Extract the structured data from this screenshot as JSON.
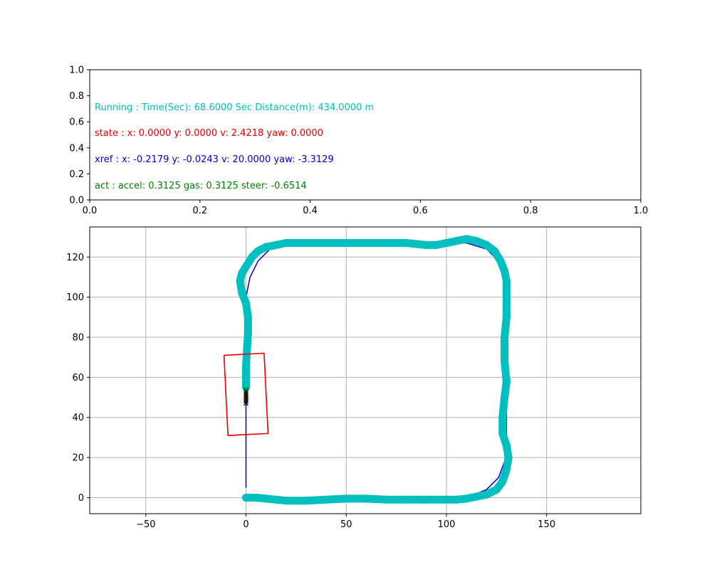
{
  "chart_data": [
    {
      "type": "text",
      "xlim": [
        0,
        1
      ],
      "ylim": [
        0,
        1
      ],
      "xticks": [
        "0.0",
        "0.2",
        "0.4",
        "0.6",
        "0.8",
        "1.0"
      ],
      "yticks": [
        "0.0",
        "0.2",
        "0.4",
        "0.6",
        "0.8",
        "1.0"
      ],
      "texts": [
        {
          "label": "Running : Time(Sec): 68.6000 Sec Distance(m): 434.0000 m",
          "color": "#00bfbf",
          "x": 0.01,
          "y": 0.7
        },
        {
          "label": "state :  x: 0.0000 y: 0.0000 v: 2.4218 yaw: 0.0000",
          "color": "#dd0000",
          "x": 0.01,
          "y": 0.5
        },
        {
          "label": "xref :  x: -0.2179 y: -0.0243 v: 20.0000 yaw: -3.3129",
          "color": "#0000cc",
          "x": 0.01,
          "y": 0.3
        },
        {
          "label": "act :  accel: 0.3125 gas: 0.3125 steer: -0.6514",
          "color": "#008000",
          "x": 0.01,
          "y": 0.1
        }
      ]
    },
    {
      "type": "line",
      "xlim": [
        -78,
        197
      ],
      "ylim": [
        -8,
        135
      ],
      "xticks": [
        -50,
        0,
        50,
        100,
        150
      ],
      "yticks": [
        0,
        20,
        40,
        60,
        80,
        100,
        120
      ],
      "xtick_labels": [
        "−50",
        "0",
        "50",
        "100",
        "150"
      ],
      "ytick_labels": [
        "0",
        "20",
        "40",
        "60",
        "80",
        "100",
        "120"
      ],
      "grid": true,
      "colors": {
        "reference": "#0000cc",
        "trajectory": "#00bfbf",
        "vehicle": "#ee0000",
        "history": "#000000",
        "current": "#008000"
      },
      "series": [
        {
          "points": [
            [
              0,
              5
            ],
            [
              0,
              20
            ],
            [
              0,
              40
            ],
            [
              0,
              55
            ],
            [
              0,
              70
            ],
            [
              0,
              85
            ],
            [
              0,
              100
            ],
            [
              2,
              110
            ],
            [
              6,
              118
            ],
            [
              12,
              124
            ],
            [
              20,
              127
            ],
            [
              40,
              127
            ],
            [
              70,
              127
            ],
            [
              100,
              127
            ],
            [
              110,
              127
            ],
            [
              120,
              124
            ],
            [
              126,
              118
            ],
            [
              129,
              110
            ],
            [
              130,
              100
            ],
            [
              130,
              80
            ],
            [
              130,
              60
            ],
            [
              130,
              40
            ],
            [
              130,
              25
            ],
            [
              129,
              18
            ],
            [
              126,
              10
            ],
            [
              120,
              4
            ],
            [
              110,
              0
            ],
            [
              80,
              0
            ],
            [
              50,
              0
            ],
            [
              20,
              0
            ],
            [
              0,
              0
            ]
          ]
        },
        {
          "points": [
            [
              0,
              0
            ],
            [
              5,
              0
            ],
            [
              10,
              -0.5
            ],
            [
              15,
              -1
            ],
            [
              20,
              -1.5
            ],
            [
              30,
              -1.5
            ],
            [
              40,
              -1
            ],
            [
              50,
              -0.5
            ],
            [
              60,
              -0.5
            ],
            [
              70,
              -1
            ],
            [
              80,
              -1
            ],
            [
              90,
              -1
            ],
            [
              100,
              -1
            ],
            [
              105,
              -1
            ],
            [
              110,
              -0.5
            ],
            [
              115,
              0.5
            ],
            [
              120,
              1.5
            ],
            [
              125,
              4
            ],
            [
              128,
              8
            ],
            [
              130,
              14
            ],
            [
              131,
              20
            ],
            [
              130,
              26
            ],
            [
              128,
              32
            ],
            [
              128,
              40
            ],
            [
              129,
              50
            ],
            [
              130,
              58
            ],
            [
              129,
              68
            ],
            [
              129,
              80
            ],
            [
              130,
              90
            ],
            [
              130,
              100
            ],
            [
              130,
              108
            ],
            [
              129,
              113
            ],
            [
              127,
              118
            ],
            [
              124,
              123
            ],
            [
              120,
              126
            ],
            [
              115,
              128
            ],
            [
              110,
              129
            ],
            [
              105,
              128
            ],
            [
              100,
              127
            ],
            [
              95,
              126
            ],
            [
              90,
              126
            ],
            [
              85,
              126.5
            ],
            [
              80,
              127
            ],
            [
              70,
              127
            ],
            [
              60,
              127
            ],
            [
              50,
              127
            ],
            [
              40,
              127
            ],
            [
              30,
              127
            ],
            [
              20,
              127
            ],
            [
              15,
              126
            ],
            [
              10,
              125
            ],
            [
              6,
              123
            ],
            [
              3,
              120
            ],
            [
              0.5,
              116
            ],
            [
              -2,
              112
            ],
            [
              -3,
              108
            ],
            [
              -2,
              102
            ],
            [
              0,
              97
            ],
            [
              1,
              90
            ],
            [
              1,
              82
            ],
            [
              0.5,
              74
            ],
            [
              0,
              65
            ],
            [
              0,
              58
            ],
            [
              0,
              55
            ]
          ]
        },
        {
          "points": [
            [
              -11,
              71
            ],
            [
              9,
              72
            ],
            [
              11,
              32
            ],
            [
              -9,
              31
            ],
            [
              -11,
              71
            ]
          ]
        },
        {
          "points": [
            [
              0,
              47
            ],
            [
              0,
              48
            ],
            [
              0,
              49
            ],
            [
              0,
              50
            ],
            [
              0,
              51
            ],
            [
              0,
              52
            ],
            [
              0,
              53
            ]
          ]
        },
        {
          "points": [
            [
              0,
              54
            ]
          ]
        }
      ]
    }
  ]
}
